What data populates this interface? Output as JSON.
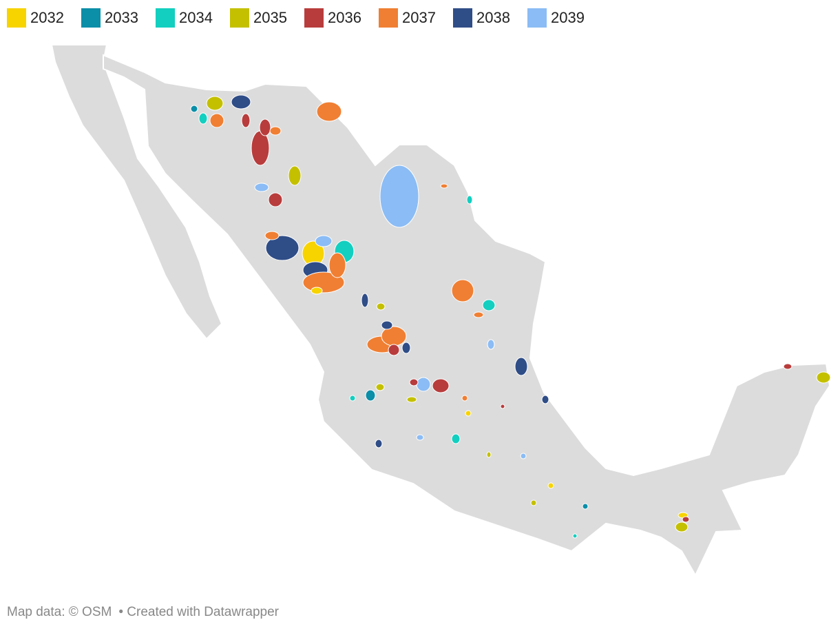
{
  "legend": [
    {
      "label": "2032",
      "color": "#f7d300"
    },
    {
      "label": "2033",
      "color": "#0b8ea8"
    },
    {
      "label": "2034",
      "color": "#13cfc0"
    },
    {
      "label": "2035",
      "color": "#c4c000"
    },
    {
      "label": "2036",
      "color": "#b83c3c"
    },
    {
      "label": "2037",
      "color": "#f07f33"
    },
    {
      "label": "2038",
      "color": "#2f4d87"
    },
    {
      "label": "2039",
      "color": "#8bbcf5"
    }
  ],
  "footer": {
    "source": "Map data: © OSM",
    "credit": "• Created with Datawrapper"
  }
}
